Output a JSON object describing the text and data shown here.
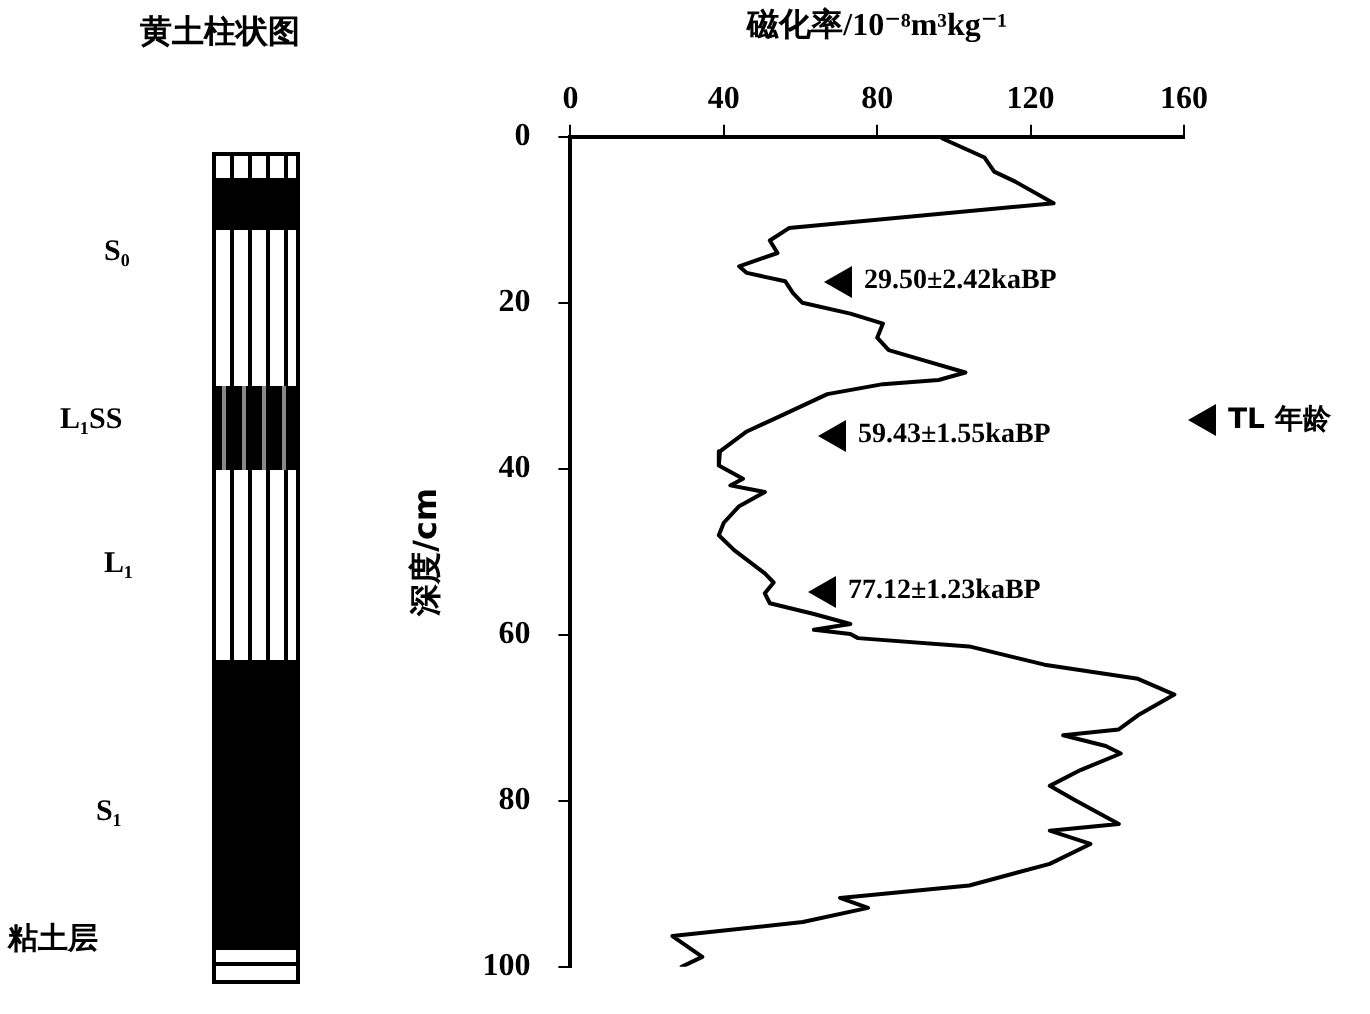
{
  "chart_data": [
    {
      "type": "other",
      "title": "黄土柱状图",
      "annotations": [
        "S₀",
        "L₁SS",
        "L₁",
        "S₁",
        "粘土层"
      ]
    },
    {
      "type": "line",
      "xlabel": "磁化率/10⁻⁸m³kg⁻¹",
      "ylabel": "深度/cm",
      "xlim": [
        0,
        160
      ],
      "xticks": [
        0,
        40,
        80,
        120,
        160
      ],
      "ylim": [
        100,
        0
      ],
      "yticks": [
        0,
        20,
        40,
        60,
        80,
        100
      ],
      "marker": "none",
      "line_style": "solid",
      "legend": false,
      "series": [
        {
          "color": "#000000",
          "x": [
            97,
            108,
            110.5,
            116,
            126,
            57,
            52,
            54,
            44,
            46,
            56,
            58,
            60.5,
            73,
            81.5,
            80,
            83,
            92.6,
            103,
            96,
            81.5,
            67,
            54,
            46,
            39,
            38.7,
            45,
            41.7,
            50.7,
            44,
            40,
            38.7,
            42.7,
            50.7,
            53,
            50.7,
            52,
            63.5,
            73,
            63.5,
            73,
            75,
            104,
            123.6,
            148,
            157.5,
            148,
            143,
            128.5,
            139.6,
            143.5,
            133,
            125,
            131.5,
            143,
            125,
            135.6,
            125,
            104,
            70.3,
            77.6,
            60.6,
            26.6,
            34.4,
            29
          ],
          "values": [
            0.2,
            2.5,
            4.2,
            5.4,
            8,
            11,
            12.5,
            14,
            15.6,
            16.4,
            17.4,
            18.8,
            20,
            21.3,
            22.5,
            24.2,
            25.7,
            27,
            28.4,
            29.3,
            29.8,
            31,
            33.8,
            35.5,
            37.9,
            39.6,
            41.2,
            42,
            42.8,
            44.5,
            46.5,
            48,
            49.8,
            52.6,
            53.7,
            55,
            56.2,
            57.5,
            58.7,
            59.4,
            59.9,
            60.4,
            61.4,
            63.6,
            65.3,
            67.2,
            69.7,
            71.4,
            72.1,
            73.4,
            74.3,
            76.3,
            78.2,
            79.9,
            82.8,
            83.6,
            85.2,
            87.6,
            90.2,
            91.7,
            92.9,
            94.6,
            96.3,
            98.8,
            100
          ]
        }
      ],
      "annotations": [
        "29.50±2.42kaBP",
        "59.43±1.55kaBP",
        "77.12±1.23kaBP",
        "TL 年龄"
      ]
    }
  ]
}
